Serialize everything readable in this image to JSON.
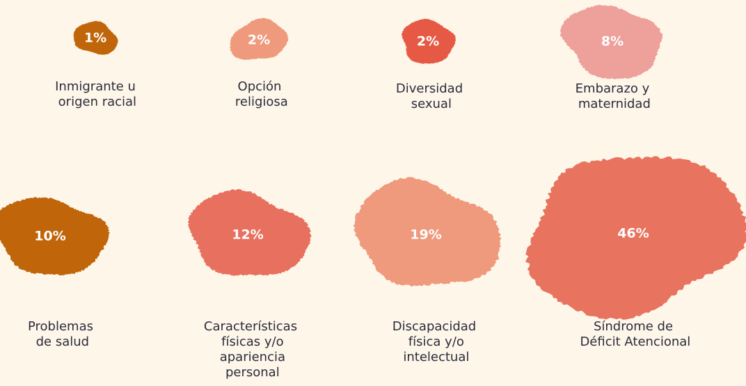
{
  "chart_data": {
    "type": "bubble",
    "categories": [
      "Inmigrante u origen racial",
      "Opción religiosa",
      "Diversidad sexual",
      "Embarazo y maternidad",
      "Problemas de salud",
      "Características físicas y/o apariencia personal",
      "Discapacidad física y/o intelectual",
      "Síndrome de Déficit Atencional"
    ],
    "values": [
      1,
      2,
      2,
      8,
      10,
      12,
      19,
      46
    ],
    "value_labels": [
      "1%",
      "2%",
      "2%",
      "8%",
      "10%",
      "12%",
      "19%",
      "46%"
    ],
    "colors": [
      "#c0650a",
      "#ef9a7c",
      "#e65a45",
      "#eea09b",
      "#c0650a",
      "#e8705e",
      "#ef997d",
      "#e8735e"
    ]
  }
}
